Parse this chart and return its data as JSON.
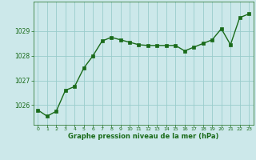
{
  "x": [
    0,
    1,
    2,
    3,
    4,
    5,
    6,
    7,
    8,
    9,
    10,
    11,
    12,
    13,
    14,
    15,
    16,
    17,
    18,
    19,
    20,
    21,
    22,
    23
  ],
  "y": [
    1025.8,
    1025.55,
    1025.75,
    1026.6,
    1026.75,
    1027.5,
    1028.0,
    1028.6,
    1028.75,
    1028.65,
    1028.55,
    1028.45,
    1028.42,
    1028.42,
    1028.42,
    1028.42,
    1028.2,
    1028.35,
    1028.5,
    1028.65,
    1029.1,
    1028.45,
    1029.55,
    1029.7
  ],
  "line_color": "#1a6b1a",
  "marker_color": "#1a6b1a",
  "bg_color": "#cce8ea",
  "grid_color": "#99cccc",
  "xlabel": "Graphe pression niveau de la mer (hPa)",
  "xlabel_color": "#1a6b1a",
  "tick_color": "#1a6b1a",
  "ylim": [
    1025.2,
    1030.2
  ],
  "yticks": [
    1026,
    1027,
    1028,
    1029
  ],
  "xticks": [
    0,
    1,
    2,
    3,
    4,
    5,
    6,
    7,
    8,
    9,
    10,
    11,
    12,
    13,
    14,
    15,
    16,
    17,
    18,
    19,
    20,
    21,
    22,
    23
  ]
}
